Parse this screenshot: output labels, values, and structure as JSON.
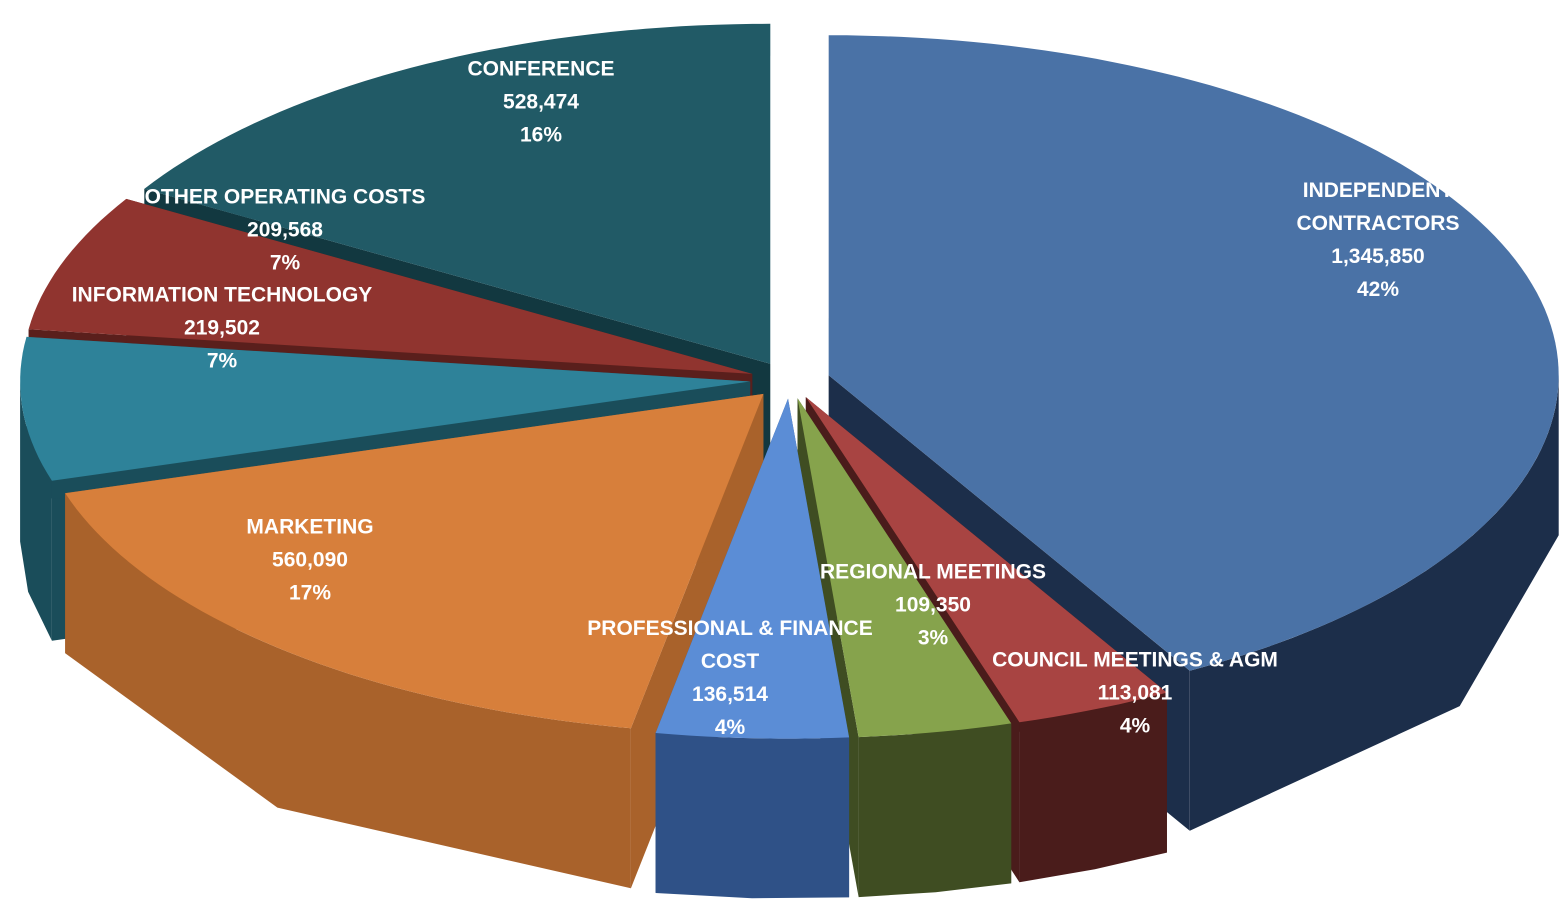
{
  "chart_data": {
    "type": "pie3d",
    "categories": [
      "INDEPENDENT CONTRACTORS",
      "COUNCIL MEETINGS & AGM",
      "REGIONAL MEETINGS",
      "PROFESSIONAL & FINANCE COST",
      "MARKETING",
      "INFORMATION TECHNOLOGY",
      "OTHER OPERATING COSTS",
      "CONFERENCE"
    ],
    "values": [
      1345850,
      113081,
      109350,
      136514,
      560090,
      219502,
      209568,
      528474
    ],
    "value_labels": [
      "1,345,850",
      "113,081",
      "109,350",
      "136,514",
      "560,090",
      "219,502",
      "209,568",
      "528,474"
    ],
    "percent_labels": [
      "42%",
      "4%",
      "3%",
      "4%",
      "17%",
      "7%",
      "7%",
      "16%"
    ],
    "colors": [
      "#4a72a6",
      "#a84442",
      "#86a34c",
      "#5b8dd6",
      "#d77f3b",
      "#2e8299",
      "#90342f",
      "#215a66"
    ],
    "side_colors": [
      "#1c2e4a",
      "#4a1c1b",
      "#3f4d22",
      "#2f5187",
      "#a9622b",
      "#1a4d5a",
      "#5a1f1c",
      "#123840"
    ]
  }
}
